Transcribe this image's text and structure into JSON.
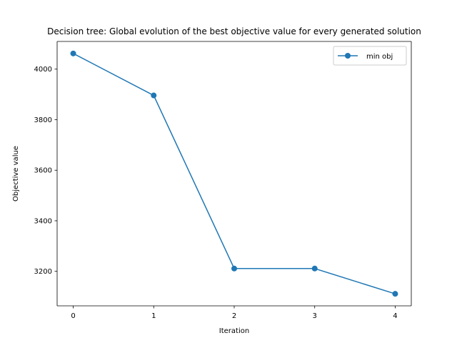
{
  "chart_data": {
    "type": "line",
    "title": "Decision tree: Global evolution of the best objective value for every generated solution",
    "xlabel": "Iteration",
    "ylabel": "Objective value",
    "x": [
      0,
      1,
      2,
      3,
      4
    ],
    "series": [
      {
        "name": "min obj",
        "values": [
          4062,
          3896,
          3211,
          3211,
          3111
        ],
        "color": "#1f77b4",
        "marker": "circle"
      }
    ],
    "xticks": [
      "0",
      "1",
      "2",
      "3",
      "4"
    ],
    "yticks": [
      "3200",
      "3400",
      "3600",
      "3800",
      "4000"
    ],
    "xlim": [
      -0.2,
      4.2
    ],
    "ylim": [
      3063.45,
      4109.55
    ],
    "grid": false,
    "legend_position": "top-right"
  }
}
